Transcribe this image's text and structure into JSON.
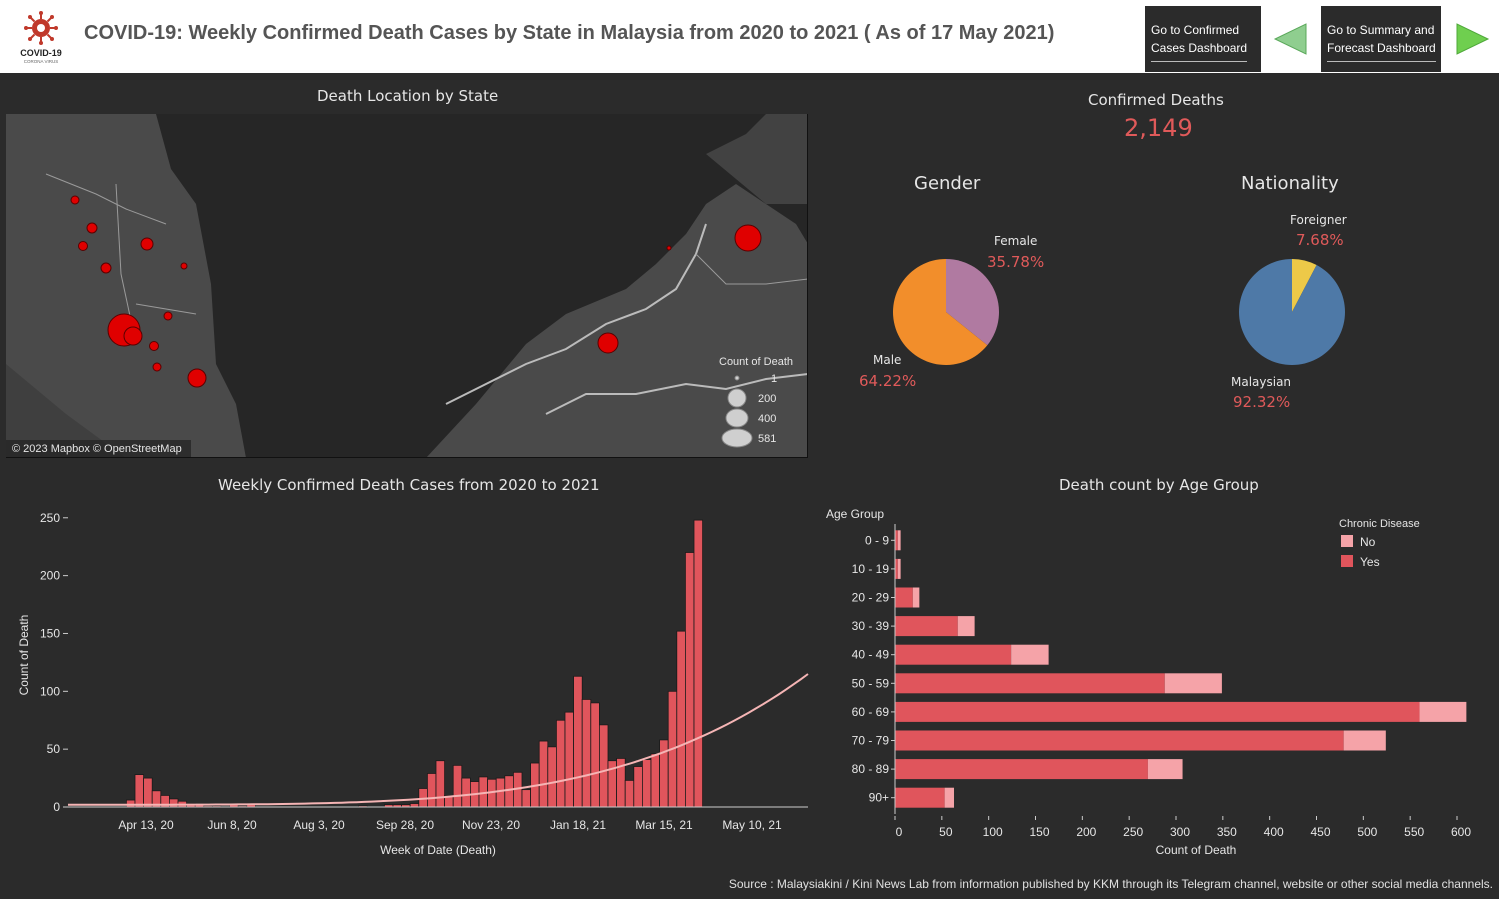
{
  "header": {
    "title": "COVID-19: Weekly Confirmed Death Cases by State in Malaysia from 2020 to 2021 ( As of 17 May 2021)",
    "logo_text": "COVID-19",
    "logo_subtext": "CORONA VIRUS",
    "nav_confirmed_line1": "Go to Confirmed",
    "nav_confirmed_line2": "Cases Dashboard",
    "nav_summary_line1": "Go to Summary and",
    "nav_summary_line2": "Forecast Dashboard"
  },
  "colors": {
    "accent_red": "#e05a5a",
    "bar_yes": "#e0555c",
    "bar_no": "#f5a3a8",
    "female": "#b07aa1",
    "male": "#f28e2b",
    "malaysian": "#4e79a7",
    "foreigner": "#edc948",
    "nav_arrow": "#7fc97f"
  },
  "map": {
    "title": "Death Location by State",
    "attribution": "© 2023 Mapbox © OpenStreetMap",
    "legend_title": "Count of Death",
    "legend_items": [
      "1",
      "200",
      "400",
      "581"
    ]
  },
  "kpi": {
    "label": "Confirmed Deaths",
    "value": "2,149"
  },
  "gender": {
    "title": "Gender",
    "female_label": "Female",
    "female_pct": "35.78%",
    "male_label": "Male",
    "male_pct": "64.22%"
  },
  "nationality": {
    "title": "Nationality",
    "foreigner_label": "Foreigner",
    "foreigner_pct": "7.68%",
    "malaysian_label": "Malaysian",
    "malaysian_pct": "92.32%"
  },
  "weekly": {
    "title": "Weekly Confirmed Death Cases from 2020 to 2021",
    "xlabel": "Week of Date (Death)",
    "ylabel": "Count of Death"
  },
  "age": {
    "title": "Death count by Age Group",
    "axis_title": "Age Group",
    "xlabel": "Count of Death",
    "legend_title": "Chronic Disease",
    "legend_no": "No",
    "legend_yes": "Yes"
  },
  "source": "Source : Malaysiakini / Kini News Lab from information published by KKM through its Telegram channel, website or other social media channels.",
  "chart_data": [
    {
      "type": "pie",
      "title": "Gender",
      "categories": [
        "Female",
        "Male"
      ],
      "values": [
        35.78,
        64.22
      ]
    },
    {
      "type": "pie",
      "title": "Nationality",
      "categories": [
        "Foreigner",
        "Malaysian"
      ],
      "values": [
        7.68,
        92.32
      ]
    },
    {
      "type": "bar",
      "title": "Weekly Confirmed Death Cases from 2020 to 2021",
      "xlabel": "Week of Date (Death)",
      "ylabel": "Count of Death",
      "x_tick_labels": [
        "Apr 13, 20",
        "Jun 8, 20",
        "Aug 3, 20",
        "Sep 28, 20",
        "Nov 23, 20",
        "Jan 18, 21",
        "Mar 15, 21",
        "May 10, 21"
      ],
      "y_ticks": [
        0,
        50,
        100,
        150,
        200,
        250
      ],
      "ylim": [
        0,
        250
      ],
      "values": [
        0,
        0,
        0,
        0,
        6,
        28,
        25,
        14,
        10,
        7,
        5,
        3,
        2,
        1,
        1,
        0,
        2,
        1,
        3,
        0,
        0,
        0,
        0,
        0,
        0,
        0,
        0,
        0,
        0,
        0,
        0,
        1,
        0,
        0,
        2,
        2,
        2,
        3,
        16,
        29,
        40,
        10,
        36,
        25,
        22,
        26,
        24,
        25,
        27,
        30,
        15,
        38,
        57,
        52,
        75,
        82,
        113,
        93,
        90,
        71,
        40,
        42,
        23,
        35,
        41,
        46,
        58,
        100,
        152,
        220,
        248
      ],
      "trend": "exponential"
    },
    {
      "type": "bar",
      "orientation": "horizontal",
      "stacked": true,
      "title": "Death count by Age Group",
      "xlabel": "Count of Death",
      "ylabel": "Age Group",
      "categories": [
        "0 - 9",
        "10 - 19",
        "20 - 29",
        "30 - 39",
        "40 - 49",
        "50 - 59",
        "60 - 69",
        "70 - 79",
        "80 - 89",
        "90+"
      ],
      "x_ticks": [
        0,
        50,
        100,
        150,
        200,
        250,
        300,
        350,
        400,
        450,
        500,
        550,
        600
      ],
      "series": [
        {
          "name": "Yes",
          "values": [
            3,
            3,
            19,
            67,
            124,
            288,
            560,
            479,
            270,
            53
          ]
        },
        {
          "name": "No",
          "values": [
            3,
            3,
            7,
            18,
            40,
            61,
            50,
            45,
            37,
            10
          ]
        }
      ]
    }
  ]
}
